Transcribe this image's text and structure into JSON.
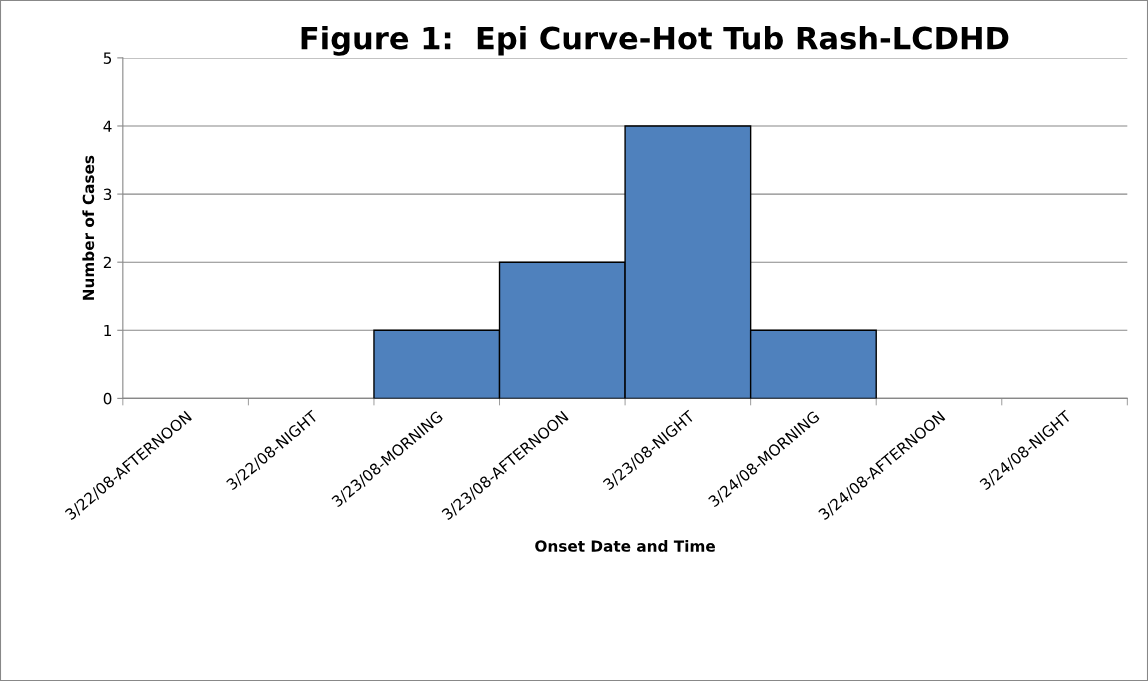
{
  "chart_data": {
    "type": "bar",
    "title": "Figure 1:  Epi Curve-Hot Tub Rash-LCDHD",
    "xlabel": "Onset Date and Time",
    "ylabel": "Number of Cases",
    "categories": [
      "3/22/08-AFTERNOON",
      "3/22/08-NIGHT",
      "3/23/08-MORNING",
      "3/23/08-AFTERNOON",
      "3/23/08-NIGHT",
      "3/24/08-MORNING",
      "3/24/08-AFTERNOON",
      "3/24/08-NIGHT"
    ],
    "values": [
      0,
      0,
      1,
      2,
      4,
      1,
      0,
      0
    ],
    "color": "#4f81bd",
    "ylim": [
      0,
      5
    ],
    "yticks": [
      0,
      1,
      2,
      3,
      4,
      5
    ],
    "grid": "y"
  }
}
